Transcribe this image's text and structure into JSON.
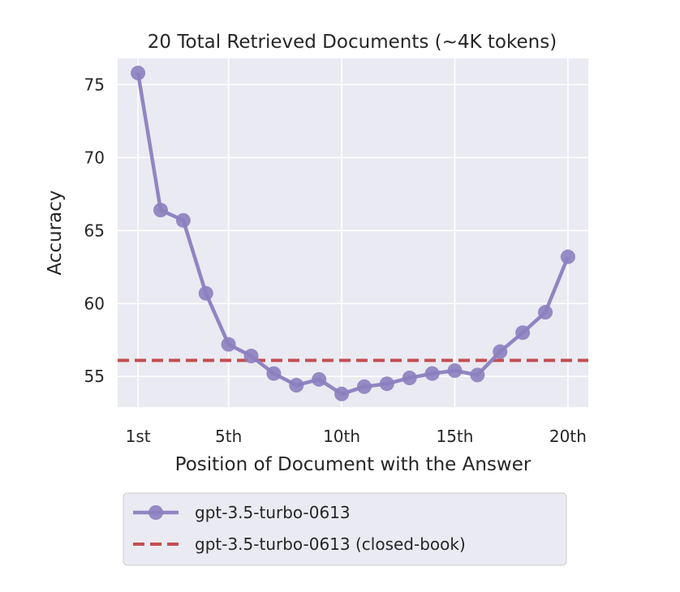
{
  "chart_data": {
    "type": "line",
    "title": "20 Total Retrieved Documents (~4K tokens)",
    "xlabel": "Position of Document with the Answer",
    "ylabel": "Accuracy",
    "x": [
      1,
      2,
      3,
      4,
      5,
      6,
      7,
      8,
      9,
      10,
      11,
      12,
      13,
      14,
      15,
      16,
      17,
      18,
      19,
      20
    ],
    "x_ticks": [
      1,
      5,
      10,
      15,
      20
    ],
    "x_tick_labels": [
      "1st",
      "5th",
      "10th",
      "15th",
      "20th"
    ],
    "y_ticks": [
      55,
      60,
      65,
      70,
      75
    ],
    "y_tick_labels": [
      "55",
      "60",
      "65",
      "70",
      "75"
    ],
    "xlim": [
      0.1,
      20.9
    ],
    "ylim": [
      52.9,
      76.8
    ],
    "grid": true,
    "legend_position": "below",
    "series": [
      {
        "name": "gpt-3.5-turbo-0613",
        "color": "#8c7fbf",
        "values": [
          75.8,
          66.4,
          65.7,
          60.7,
          57.2,
          56.4,
          55.2,
          54.4,
          54.8,
          53.8,
          54.3,
          54.5,
          54.9,
          55.2,
          55.4,
          55.1,
          56.7,
          58.0,
          59.4,
          63.2
        ]
      }
    ],
    "reference_lines": [
      {
        "name": "gpt-3.5-turbo-0613 (closed-book)",
        "value": 56.1,
        "color": "#c44e52",
        "style": "dashed"
      }
    ]
  }
}
